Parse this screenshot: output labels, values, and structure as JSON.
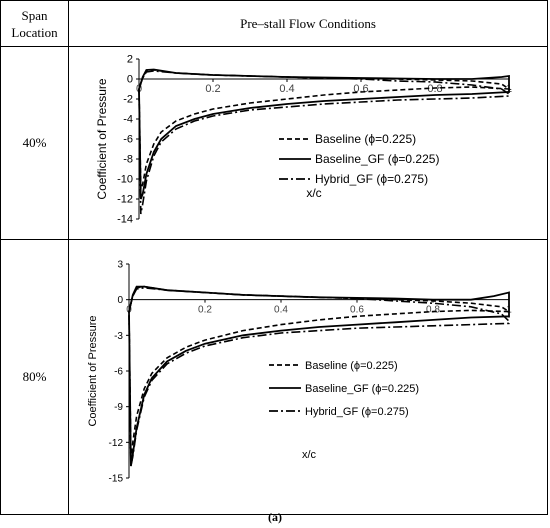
{
  "table": {
    "header_span": [
      "Span",
      "Location"
    ],
    "header_main": "Pre–stall Flow Conditions",
    "rows": [
      {
        "label": "40%"
      },
      {
        "label": "80%"
      }
    ]
  },
  "caption": "(a)",
  "chart_data": [
    {
      "type": "line",
      "title": "",
      "xlabel": "x/c",
      "ylabel": "Coefficient of Pressure",
      "xlim": [
        0,
        1
      ],
      "ylim": [
        -14,
        2
      ],
      "xticks": [
        "0",
        "0.2",
        "0.4",
        "0.6",
        "0.8",
        "1"
      ],
      "yticks": [
        "2",
        "0",
        "-2",
        "-4",
        "-6",
        "-8",
        "-10",
        "-12",
        "-14"
      ],
      "legend": "center-right",
      "series": [
        {
          "name": "Baseline (ϕ=0.225)",
          "style": "dashed",
          "upper": [
            [
              0,
              -1
            ],
            [
              0.01,
              0.1
            ],
            [
              0.02,
              0.8
            ],
            [
              0.04,
              0.9
            ],
            [
              0.1,
              0.6
            ],
            [
              0.2,
              0.4
            ],
            [
              0.3,
              0.3
            ],
            [
              0.4,
              0.2
            ],
            [
              0.5,
              0.1
            ],
            [
              0.6,
              0.05
            ],
            [
              0.7,
              0
            ],
            [
              0.8,
              -0.1
            ],
            [
              0.9,
              -0.2
            ],
            [
              0.98,
              -0.5
            ],
            [
              1,
              -1
            ]
          ],
          "lower": [
            [
              0,
              -1
            ],
            [
              0.005,
              -11
            ],
            [
              0.01,
              -10.5
            ],
            [
              0.02,
              -8.5
            ],
            [
              0.04,
              -6.5
            ],
            [
              0.06,
              -5.3
            ],
            [
              0.1,
              -4.2
            ],
            [
              0.15,
              -3.5
            ],
            [
              0.2,
              -3.0
            ],
            [
              0.3,
              -2.4
            ],
            [
              0.4,
              -2.0
            ],
            [
              0.5,
              -1.6
            ],
            [
              0.6,
              -1.3
            ],
            [
              0.7,
              -1.1
            ],
            [
              0.8,
              -0.9
            ],
            [
              0.9,
              -0.8
            ],
            [
              1,
              -1
            ]
          ]
        },
        {
          "name": "Baseline_GF (ϕ=0.225)",
          "style": "solid",
          "upper": [
            [
              0,
              -1
            ],
            [
              0.01,
              0.2
            ],
            [
              0.02,
              0.9
            ],
            [
              0.04,
              0.95
            ],
            [
              0.1,
              0.6
            ],
            [
              0.2,
              0.4
            ],
            [
              0.3,
              0.3
            ],
            [
              0.4,
              0.2
            ],
            [
              0.5,
              0.15
            ],
            [
              0.6,
              0.1
            ],
            [
              0.7,
              0.05
            ],
            [
              0.8,
              0
            ],
            [
              0.9,
              0
            ],
            [
              0.98,
              0.2
            ],
            [
              1,
              0.3
            ],
            [
              1,
              -1
            ]
          ],
          "lower": [
            [
              0,
              -1
            ],
            [
              0.005,
              -12
            ],
            [
              0.01,
              -11.5
            ],
            [
              0.02,
              -9.5
            ],
            [
              0.04,
              -7.3
            ],
            [
              0.06,
              -6.0
            ],
            [
              0.1,
              -4.7
            ],
            [
              0.15,
              -4.0
            ],
            [
              0.2,
              -3.5
            ],
            [
              0.3,
              -2.9
            ],
            [
              0.4,
              -2.5
            ],
            [
              0.5,
              -2.2
            ],
            [
              0.6,
              -2.0
            ],
            [
              0.7,
              -1.8
            ],
            [
              0.8,
              -1.6
            ],
            [
              0.9,
              -1.5
            ],
            [
              1,
              -1.3
            ]
          ]
        },
        {
          "name": "Hybrid_GF (ϕ=0.275)",
          "style": "dashdot",
          "upper": [
            [
              0,
              -1
            ],
            [
              0.01,
              0.1
            ],
            [
              0.02,
              0.7
            ],
            [
              0.04,
              0.8
            ],
            [
              0.1,
              0.6
            ],
            [
              0.2,
              0.4
            ],
            [
              0.3,
              0.3
            ],
            [
              0.4,
              0.2
            ],
            [
              0.5,
              0.1
            ],
            [
              0.6,
              0.0
            ],
            [
              0.7,
              -0.2
            ],
            [
              0.8,
              -0.3
            ],
            [
              0.9,
              -0.6
            ],
            [
              0.98,
              -1.0
            ],
            [
              1,
              -1.5
            ]
          ],
          "lower": [
            [
              0,
              -1
            ],
            [
              0.005,
              -13.5
            ],
            [
              0.01,
              -12.5
            ],
            [
              0.02,
              -10.2
            ],
            [
              0.04,
              -7.7
            ],
            [
              0.06,
              -6.3
            ],
            [
              0.1,
              -5.0
            ],
            [
              0.15,
              -4.2
            ],
            [
              0.2,
              -3.7
            ],
            [
              0.3,
              -3.1
            ],
            [
              0.4,
              -2.8
            ],
            [
              0.5,
              -2.5
            ],
            [
              0.6,
              -2.3
            ],
            [
              0.7,
              -2.1
            ],
            [
              0.8,
              -2.0
            ],
            [
              0.9,
              -1.9
            ],
            [
              1,
              -1.7
            ]
          ]
        }
      ]
    },
    {
      "type": "line",
      "title": "",
      "xlabel": "x/c",
      "ylabel": "Coefficient of Pressure",
      "xlim": [
        0,
        1
      ],
      "ylim": [
        -15,
        3
      ],
      "xticks": [
        "0",
        "0.2",
        "0.4",
        "0.6",
        "0.8",
        "1"
      ],
      "yticks": [
        "3",
        "0",
        "-3",
        "-6",
        "-9",
        "-12",
        "-15"
      ],
      "legend": "center-right",
      "series": [
        {
          "name": "Baseline (ϕ=0.225)",
          "style": "dashed",
          "upper": [
            [
              0,
              -1
            ],
            [
              0.01,
              0.3
            ],
            [
              0.02,
              1.0
            ],
            [
              0.04,
              1.1
            ],
            [
              0.1,
              0.8
            ],
            [
              0.2,
              0.6
            ],
            [
              0.3,
              0.4
            ],
            [
              0.4,
              0.3
            ],
            [
              0.5,
              0.2
            ],
            [
              0.6,
              0.1
            ],
            [
              0.7,
              0.0
            ],
            [
              0.8,
              -0.1
            ],
            [
              0.9,
              -0.3
            ],
            [
              0.98,
              -0.6
            ],
            [
              1,
              -1
            ]
          ],
          "lower": [
            [
              0,
              -1
            ],
            [
              0.005,
              -13.5
            ],
            [
              0.01,
              -12
            ],
            [
              0.02,
              -9.8
            ],
            [
              0.04,
              -7.5
            ],
            [
              0.06,
              -6.2
            ],
            [
              0.1,
              -4.9
            ],
            [
              0.15,
              -4.0
            ],
            [
              0.2,
              -3.4
            ],
            [
              0.3,
              -2.6
            ],
            [
              0.4,
              -2.1
            ],
            [
              0.5,
              -1.7
            ],
            [
              0.6,
              -1.4
            ],
            [
              0.7,
              -1.2
            ],
            [
              0.8,
              -1.0
            ],
            [
              0.9,
              -0.9
            ],
            [
              1,
              -1
            ]
          ]
        },
        {
          "name": "Baseline_GF (ϕ=0.225)",
          "style": "solid",
          "upper": [
            [
              0,
              -1
            ],
            [
              0.01,
              0.4
            ],
            [
              0.02,
              1.1
            ],
            [
              0.04,
              1.1
            ],
            [
              0.1,
              0.8
            ],
            [
              0.2,
              0.6
            ],
            [
              0.3,
              0.4
            ],
            [
              0.4,
              0.3
            ],
            [
              0.5,
              0.2
            ],
            [
              0.6,
              0.15
            ],
            [
              0.7,
              0.1
            ],
            [
              0.8,
              0.0
            ],
            [
              0.9,
              0.0
            ],
            [
              0.96,
              0.3
            ],
            [
              1,
              0.6
            ],
            [
              1,
              -1.5
            ]
          ],
          "lower": [
            [
              0,
              -1
            ],
            [
              0.005,
              -14
            ],
            [
              0.01,
              -13
            ],
            [
              0.02,
              -10.8
            ],
            [
              0.04,
              -8.0
            ],
            [
              0.06,
              -6.6
            ],
            [
              0.1,
              -5.2
            ],
            [
              0.15,
              -4.3
            ],
            [
              0.2,
              -3.7
            ],
            [
              0.3,
              -3.0
            ],
            [
              0.4,
              -2.6
            ],
            [
              0.5,
              -2.3
            ],
            [
              0.6,
              -2.1
            ],
            [
              0.7,
              -1.9
            ],
            [
              0.8,
              -1.7
            ],
            [
              0.9,
              -1.5
            ],
            [
              1,
              -1.4
            ]
          ]
        },
        {
          "name": "Hybrid_GF (ϕ=0.275)",
          "style": "dashdot",
          "upper": [
            [
              0,
              -1
            ],
            [
              0.01,
              0.3
            ],
            [
              0.02,
              0.9
            ],
            [
              0.04,
              1.0
            ],
            [
              0.1,
              0.8
            ],
            [
              0.2,
              0.6
            ],
            [
              0.3,
              0.4
            ],
            [
              0.4,
              0.3
            ],
            [
              0.5,
              0.2
            ],
            [
              0.6,
              0.1
            ],
            [
              0.7,
              -0.1
            ],
            [
              0.8,
              -0.3
            ],
            [
              0.9,
              -0.6
            ],
            [
              0.98,
              -1.2
            ],
            [
              1,
              -1.8
            ]
          ],
          "lower": [
            [
              0,
              -1
            ],
            [
              0.005,
              -14
            ],
            [
              0.01,
              -13.2
            ],
            [
              0.02,
              -11
            ],
            [
              0.04,
              -8.2
            ],
            [
              0.06,
              -6.8
            ],
            [
              0.1,
              -5.4
            ],
            [
              0.15,
              -4.5
            ],
            [
              0.2,
              -3.9
            ],
            [
              0.3,
              -3.2
            ],
            [
              0.4,
              -2.8
            ],
            [
              0.5,
              -2.6
            ],
            [
              0.6,
              -2.4
            ],
            [
              0.7,
              -2.3
            ],
            [
              0.8,
              -2.2
            ],
            [
              0.9,
              -2.1
            ],
            [
              1,
              -2.0
            ]
          ]
        }
      ]
    }
  ]
}
